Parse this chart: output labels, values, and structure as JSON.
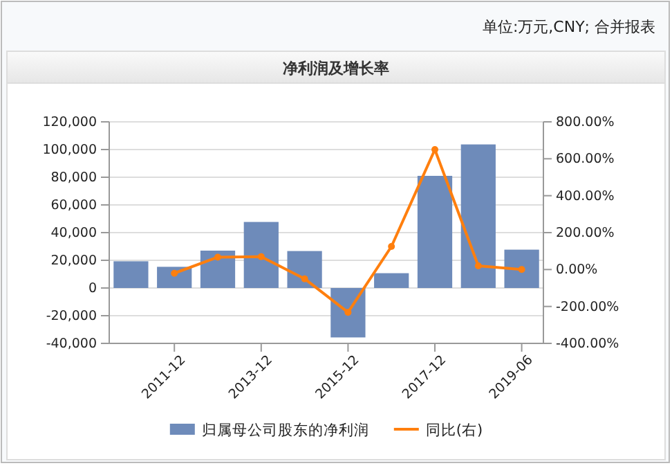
{
  "chart_data": {
    "type": "bar",
    "title": "净利润及增长率",
    "subtitle": "单位:万元,CNY; 合并报表",
    "categories": [
      null,
      "2011-12",
      null,
      "2013-12",
      null,
      "2015-12",
      null,
      "2017-12",
      null,
      "2019-06"
    ],
    "series": [
      {
        "name": "归属母公司股东的净利润",
        "color": "#6e8bba",
        "values": [
          19300,
          15300,
          27000,
          47700,
          26700,
          -35700,
          10700,
          81000,
          103700,
          27700
        ]
      },
      {
        "name": "同比(右)",
        "type": "line",
        "axis": "y2",
        "color": "#ff7f0e",
        "values": [
          null,
          -20,
          67,
          70,
          -50,
          -232,
          125,
          650,
          20,
          0
        ]
      }
    ],
    "ylim": [
      -40000,
      120000
    ],
    "yticks": [
      {
        "value": -40000,
        "label": "-40,000"
      },
      {
        "value": -20000,
        "label": "-20,000"
      },
      0,
      {
        "value": 20000,
        "label": "20,000"
      },
      {
        "value": 40000,
        "label": "40,000"
      },
      {
        "value": 60000,
        "label": "60,000"
      },
      {
        "value": 80000,
        "label": "80,000"
      },
      {
        "value": 100000,
        "label": "100,000"
      },
      {
        "value": 120000,
        "label": "120,000"
      }
    ],
    "y2lim": [
      -400,
      800
    ],
    "y2ticks": [
      {
        "value": -400,
        "label": "-400.00%"
      },
      {
        "value": -200,
        "label": "-200.00%"
      },
      {
        "value": 0,
        "label": "0.00%"
      },
      {
        "value": 200,
        "label": "200.00%"
      },
      {
        "value": 400,
        "label": "400.00%"
      },
      {
        "value": 600,
        "label": "600.00%"
      },
      {
        "value": 800,
        "label": "800.00%"
      }
    ],
    "grid": "y",
    "legend": "bottom",
    "marker": "circle"
  }
}
